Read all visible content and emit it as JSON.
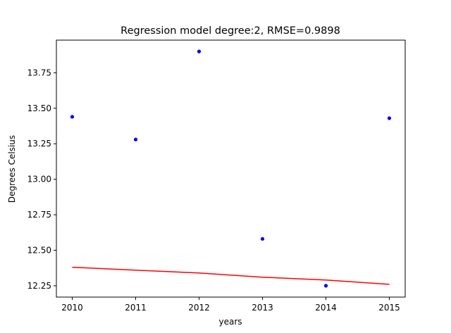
{
  "chart_data": {
    "type": "scatter",
    "title": "Regression model degree:2, RMSE=0.9898",
    "xlabel": "years",
    "ylabel": "Degrees Celsius",
    "xlim": [
      2009.75,
      2015.25
    ],
    "ylim": [
      12.17,
      13.98
    ],
    "x_ticks": [
      2010,
      2011,
      2012,
      2013,
      2014,
      2015
    ],
    "x_tick_labels": [
      "2010",
      "2011",
      "2012",
      "2013",
      "2014",
      "2015"
    ],
    "y_ticks": [
      12.25,
      12.5,
      12.75,
      13.0,
      13.25,
      13.5,
      13.75
    ],
    "y_tick_labels": [
      "12.25",
      "12.50",
      "12.75",
      "13.00",
      "13.25",
      "13.50",
      "13.75"
    ],
    "grid": false,
    "series": [
      {
        "type": "scatter",
        "color": "#0000ff",
        "x": [
          2010,
          2011,
          2012,
          2013,
          2014,
          2015
        ],
        "y": [
          13.44,
          13.28,
          13.9,
          12.58,
          12.25,
          13.43
        ]
      },
      {
        "type": "line",
        "color": "#ff0000",
        "x": [
          2010,
          2011,
          2012,
          2013,
          2014,
          2015
        ],
        "y": [
          12.38,
          12.36,
          12.34,
          12.31,
          12.29,
          12.26
        ]
      }
    ]
  }
}
